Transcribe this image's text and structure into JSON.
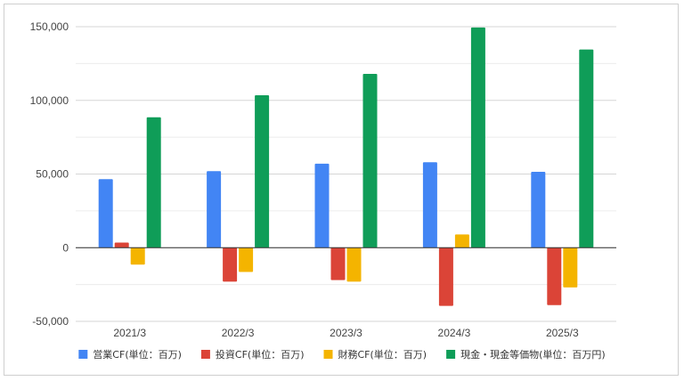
{
  "chart_data": {
    "type": "bar",
    "categories": [
      "2021/3",
      "2022/3",
      "2023/3",
      "2024/3",
      "2025/3"
    ],
    "series": [
      {
        "name": "営業CF(単位：百万)",
        "color": "#4285f4",
        "values": [
          46500,
          52000,
          57000,
          58000,
          51500
        ]
      },
      {
        "name": "投資CF(単位：百万)",
        "color": "#db4437",
        "values": [
          3500,
          -23000,
          -22000,
          -39500,
          -39000
        ]
      },
      {
        "name": "財務CF(単位：百万)",
        "color": "#f4b400",
        "values": [
          -11500,
          -16500,
          -23000,
          9000,
          -27000
        ]
      },
      {
        "name": "現金・現金等価物(単位：百万円)",
        "color": "#0f9d58",
        "values": [
          88500,
          103500,
          118000,
          149500,
          134500
        ]
      }
    ],
    "ylim": [
      -50000,
      150000
    ],
    "yticks": [
      {
        "value": -50000,
        "label": "-50,000"
      },
      {
        "value": 0,
        "label": "0"
      },
      {
        "value": 50000,
        "label": "50,000"
      },
      {
        "value": 100000,
        "label": "100,000"
      },
      {
        "value": 150000,
        "label": "150,000"
      }
    ],
    "grid": true,
    "legend_position": "bottom"
  }
}
